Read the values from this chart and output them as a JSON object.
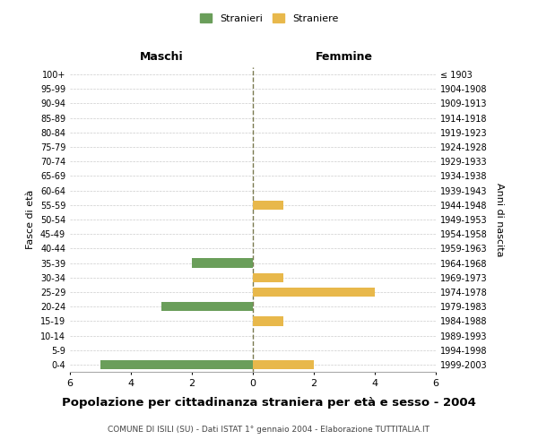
{
  "age_groups_bottom_to_top": [
    "0-4",
    "5-9",
    "10-14",
    "15-19",
    "20-24",
    "25-29",
    "30-34",
    "35-39",
    "40-44",
    "45-49",
    "50-54",
    "55-59",
    "60-64",
    "65-69",
    "70-74",
    "75-79",
    "80-84",
    "85-89",
    "90-94",
    "95-99",
    "100+"
  ],
  "birth_years_bottom_to_top": [
    "1999-2003",
    "1994-1998",
    "1989-1993",
    "1984-1988",
    "1979-1983",
    "1974-1978",
    "1969-1973",
    "1964-1968",
    "1959-1963",
    "1954-1958",
    "1949-1953",
    "1944-1948",
    "1939-1943",
    "1934-1938",
    "1929-1933",
    "1924-1928",
    "1919-1923",
    "1914-1918",
    "1909-1913",
    "1904-1908",
    "≤ 1903"
  ],
  "males_bottom_to_top": [
    5,
    0,
    0,
    0,
    3,
    0,
    0,
    2,
    0,
    0,
    0,
    0,
    0,
    0,
    0,
    0,
    0,
    0,
    0,
    0,
    0
  ],
  "females_bottom_to_top": [
    2,
    0,
    0,
    1,
    0,
    4,
    1,
    0,
    0,
    0,
    0,
    1,
    0,
    0,
    0,
    0,
    0,
    0,
    0,
    0,
    0
  ],
  "male_color": "#6a9e5a",
  "female_color": "#e8b84b",
  "title": "Popolazione per cittadinanza straniera per età e sesso - 2004",
  "subtitle": "COMUNE DI ISILI (SU) - Dati ISTAT 1° gennaio 2004 - Elaborazione TUTTITALIA.IT",
  "xlabel_left": "Maschi",
  "xlabel_right": "Femmine",
  "ylabel_left": "Fasce di età",
  "ylabel_right": "Anni di nascita",
  "legend_male": "Stranieri",
  "legend_female": "Straniere",
  "xlim": 6,
  "background_color": "#ffffff",
  "grid_color": "#cccccc",
  "center_line_color": "#7a7a50"
}
